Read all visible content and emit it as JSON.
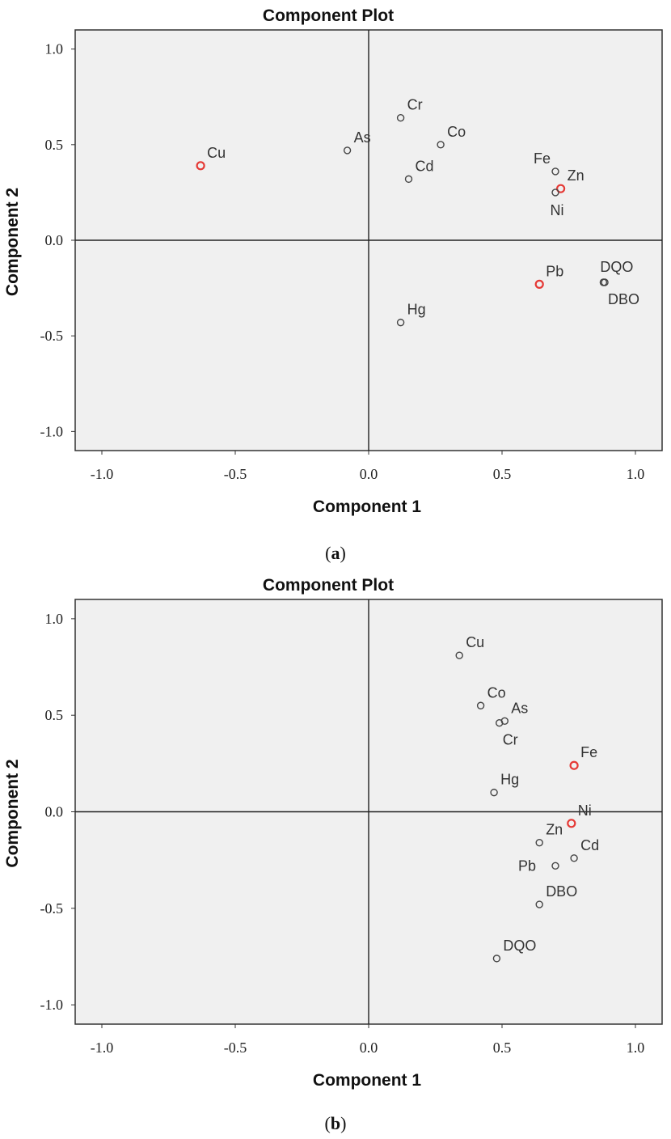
{
  "chart_data": [
    {
      "type": "scatter",
      "title": "Component Plot",
      "xlabel": "Component 1",
      "ylabel": "Component 2",
      "caption_letter": "a",
      "xlim": [
        -1.1,
        1.1
      ],
      "ylim": [
        -1.1,
        1.1
      ],
      "xticks": [
        "-1.0",
        "-0.5",
        "0.0",
        "0.5",
        "1.0"
      ],
      "yticks": [
        "1.0",
        "0.5",
        "0.0",
        "-0.5",
        "-1.0"
      ],
      "grid": false,
      "highlight_color": "#e53935",
      "default_color": "#444444",
      "points": [
        {
          "label": "Cu",
          "x": -0.63,
          "y": 0.39,
          "highlight": true,
          "label_pos": "above-right"
        },
        {
          "label": "As",
          "x": -0.08,
          "y": 0.47,
          "highlight": false,
          "label_pos": "above-right"
        },
        {
          "label": "Cr",
          "x": 0.12,
          "y": 0.64,
          "highlight": false,
          "label_pos": "above-right"
        },
        {
          "label": "Co",
          "x": 0.27,
          "y": 0.5,
          "highlight": false,
          "label_pos": "above-right"
        },
        {
          "label": "Cd",
          "x": 0.15,
          "y": 0.32,
          "highlight": false,
          "label_pos": "above-right"
        },
        {
          "label": "Fe",
          "x": 0.7,
          "y": 0.36,
          "highlight": false,
          "label_pos": "above-left"
        },
        {
          "label": "Zn",
          "x": 0.72,
          "y": 0.27,
          "highlight": true,
          "label_pos": "above-right"
        },
        {
          "label": "Ni",
          "x": 0.7,
          "y": 0.25,
          "highlight": false,
          "label_pos": "below"
        },
        {
          "label": "Pb",
          "x": 0.64,
          "y": -0.23,
          "highlight": true,
          "label_pos": "above-right"
        },
        {
          "label": "DQO",
          "x": 0.88,
          "y": -0.22,
          "highlight": false,
          "label_pos": "above"
        },
        {
          "label": "DBO",
          "x": 0.885,
          "y": -0.22,
          "highlight": false,
          "label_pos": "below-right"
        },
        {
          "label": "Hg",
          "x": 0.12,
          "y": -0.43,
          "highlight": false,
          "label_pos": "above-right"
        }
      ]
    },
    {
      "type": "scatter",
      "title": "Component Plot",
      "xlabel": "Component 1",
      "ylabel": "Component 2",
      "caption_letter": "b",
      "xlim": [
        -1.1,
        1.1
      ],
      "ylim": [
        -1.1,
        1.1
      ],
      "xticks": [
        "-1.0",
        "-0.5",
        "0.0",
        "0.5",
        "1.0"
      ],
      "yticks": [
        "1.0",
        "0.5",
        "0.0",
        "-0.5",
        "-1.0"
      ],
      "grid": false,
      "highlight_color": "#e53935",
      "default_color": "#444444",
      "points": [
        {
          "label": "Cu",
          "x": 0.34,
          "y": 0.81,
          "highlight": false,
          "label_pos": "above-right"
        },
        {
          "label": "Co",
          "x": 0.42,
          "y": 0.55,
          "highlight": false,
          "label_pos": "above-right"
        },
        {
          "label": "As",
          "x": 0.51,
          "y": 0.47,
          "highlight": false,
          "label_pos": "above-right"
        },
        {
          "label": "Cr",
          "x": 0.49,
          "y": 0.46,
          "highlight": false,
          "label_pos": "below-right"
        },
        {
          "label": "Fe",
          "x": 0.77,
          "y": 0.24,
          "highlight": true,
          "label_pos": "above-right"
        },
        {
          "label": "Hg",
          "x": 0.47,
          "y": 0.1,
          "highlight": false,
          "label_pos": "above-right"
        },
        {
          "label": "Ni",
          "x": 0.76,
          "y": -0.06,
          "highlight": true,
          "label_pos": "above-right"
        },
        {
          "label": "Zn",
          "x": 0.64,
          "y": -0.16,
          "highlight": false,
          "label_pos": "above-right"
        },
        {
          "label": "Cd",
          "x": 0.77,
          "y": -0.24,
          "highlight": false,
          "label_pos": "above-right"
        },
        {
          "label": "Pb",
          "x": 0.7,
          "y": -0.28,
          "highlight": false,
          "label_pos": "left"
        },
        {
          "label": "DBO",
          "x": 0.64,
          "y": -0.48,
          "highlight": false,
          "label_pos": "above-right"
        },
        {
          "label": "DQO",
          "x": 0.48,
          "y": -0.76,
          "highlight": false,
          "label_pos": "above-right"
        }
      ]
    }
  ]
}
